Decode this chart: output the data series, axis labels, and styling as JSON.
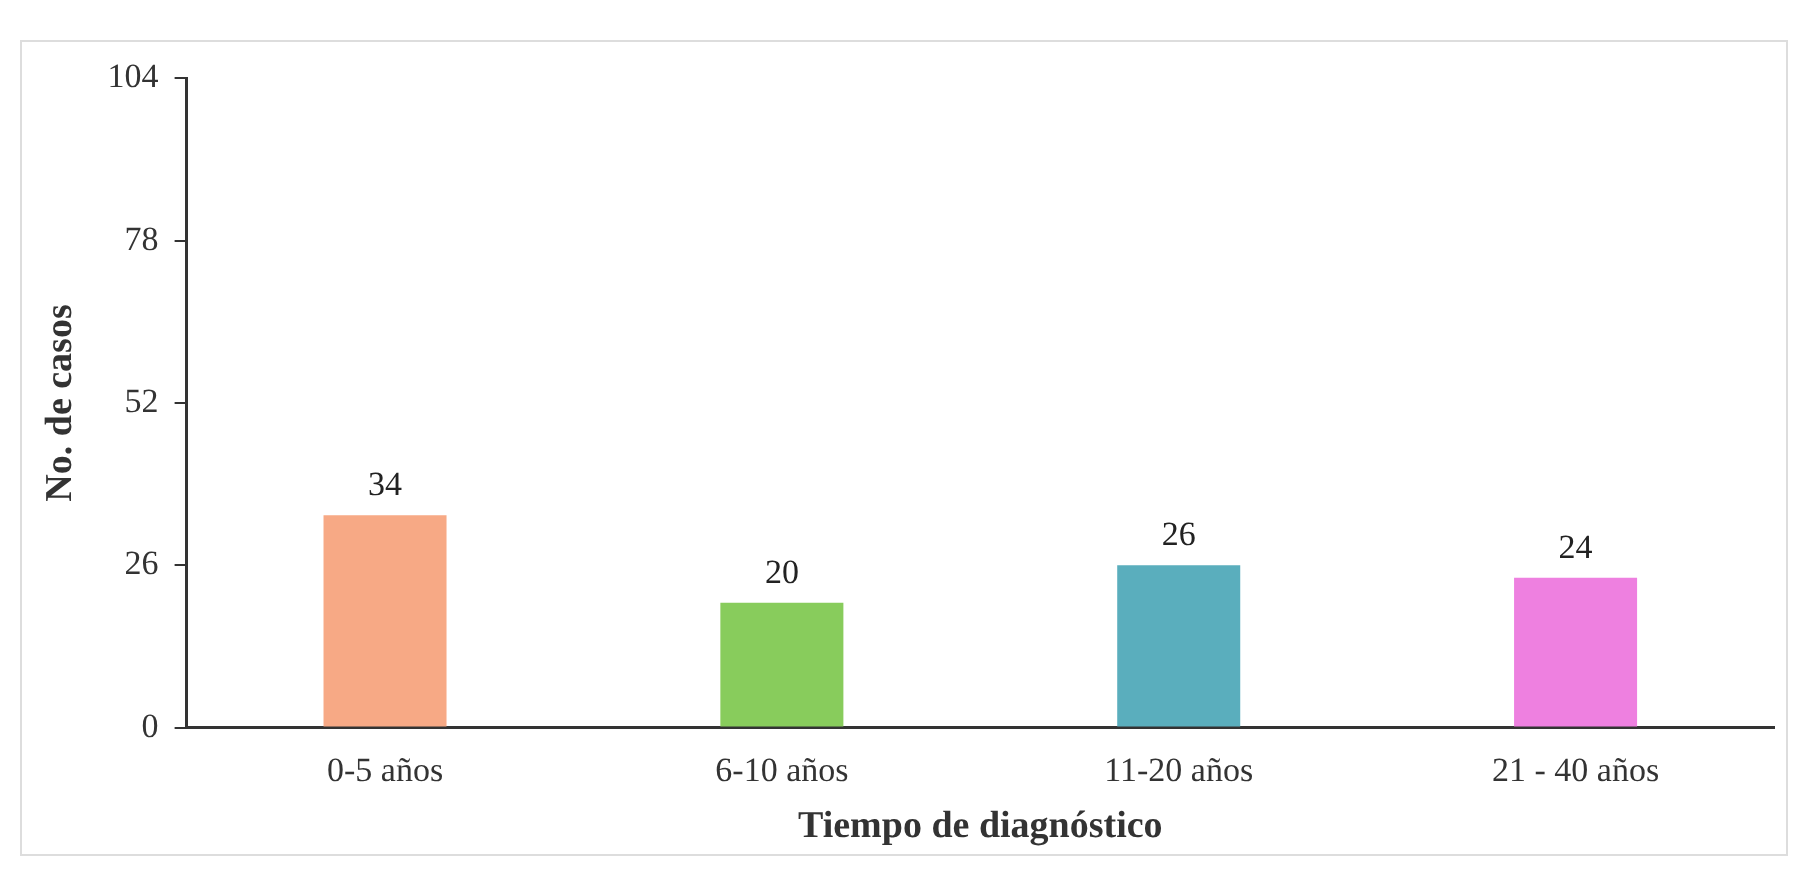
{
  "chart_data": {
    "type": "bar",
    "xlabel": "Tiempo de diagnóstico",
    "ylabel": "No. de casos",
    "categories": [
      "0-5 años",
      "6-10 años",
      "11-20 años",
      "21 - 40 años"
    ],
    "values": [
      34,
      20,
      26,
      24
    ],
    "colors": [
      "#f7a985",
      "#88cc5c",
      "#5aaebd",
      "#ee80e0"
    ],
    "ylim": [
      0,
      104
    ],
    "yticks": [
      0,
      26,
      52,
      78,
      104
    ],
    "grid": false,
    "legend": false,
    "data_labels": true
  }
}
